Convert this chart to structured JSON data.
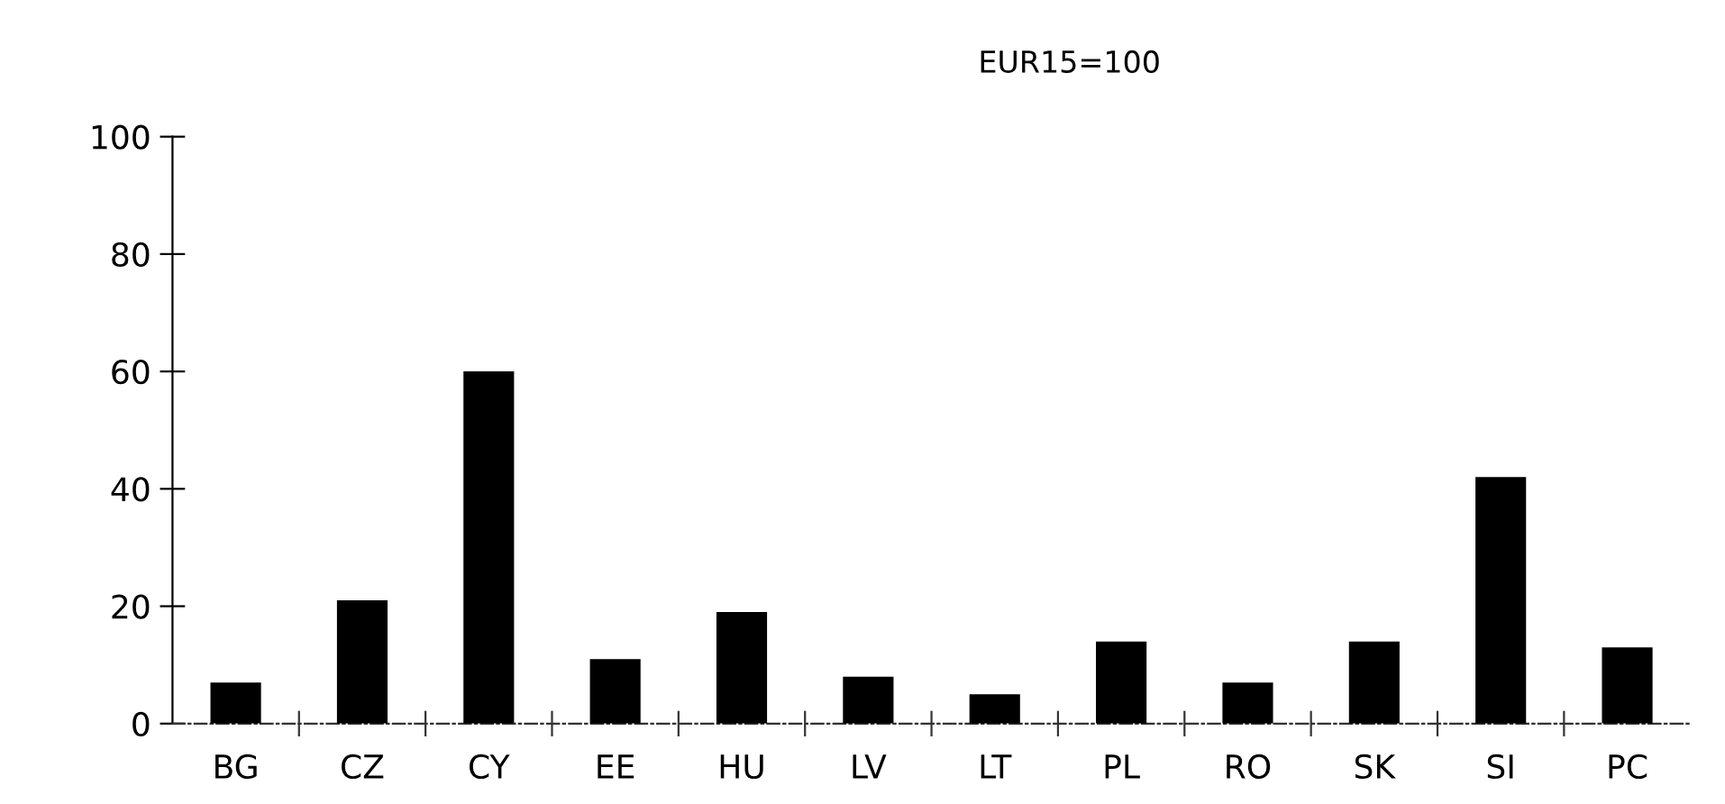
{
  "chart_data": {
    "type": "bar",
    "title": "EUR15=100",
    "categories": [
      "BG",
      "CZ",
      "CY",
      "EE",
      "HU",
      "LV",
      "LT",
      "PL",
      "RO",
      "SK",
      "SI",
      "PC"
    ],
    "values": [
      7,
      21,
      60,
      11,
      19,
      8,
      5,
      14,
      7,
      14,
      42,
      13
    ],
    "color": "#000000",
    "ylim": [
      0,
      100
    ],
    "yticks": [
      0,
      20,
      40,
      60,
      80,
      100
    ],
    "grid": false,
    "legend": false
  }
}
